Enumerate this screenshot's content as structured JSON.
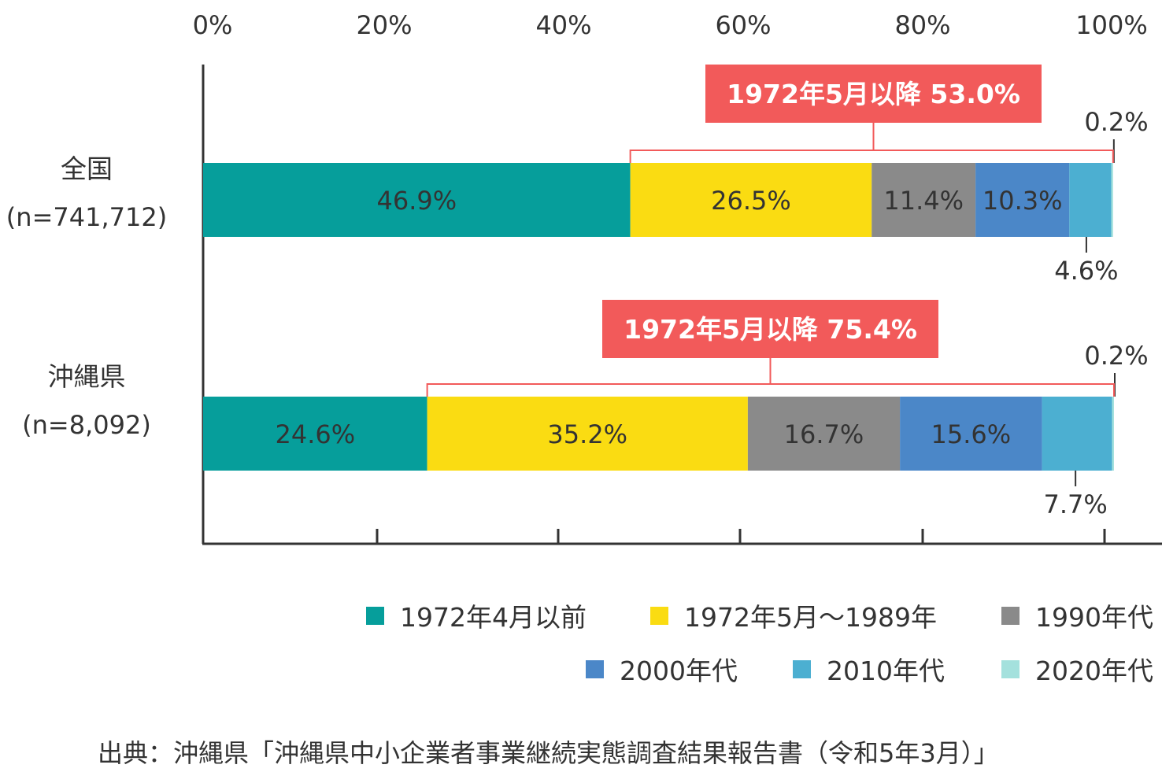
{
  "chart_data": {
    "type": "bar",
    "orientation": "horizontal",
    "stacked": true,
    "categories": [
      "全国",
      "沖縄県"
    ],
    "category_n_labels": [
      "(n=741,712)",
      "(n=8,092)"
    ],
    "xlim": [
      0,
      100
    ],
    "x_ticks": [
      "0%",
      "20%",
      "40%",
      "60%",
      "80%",
      "100%"
    ],
    "series": [
      {
        "name": "1972年4月以前",
        "values": [
          46.9,
          24.6
        ],
        "labels": [
          "46.9%",
          "24.6%"
        ],
        "color": "#069e9b"
      },
      {
        "name": "1972年5月〜1989年",
        "values": [
          26.5,
          35.2
        ],
        "labels": [
          "26.5%",
          "35.2%"
        ],
        "color": "#fadc12"
      },
      {
        "name": "1990年代",
        "values": [
          11.4,
          16.7
        ],
        "labels": [
          "11.4%",
          "16.7%"
        ],
        "color": "#8a8a8a"
      },
      {
        "name": "2000年代",
        "values": [
          10.3,
          15.6
        ],
        "labels": [
          "10.3%",
          "15.6%"
        ],
        "color": "#4b87c8"
      },
      {
        "name": "2010年代",
        "values": [
          4.6,
          7.7
        ],
        "labels": [
          "4.6%",
          "7.7%"
        ],
        "color": "#4cafd1"
      },
      {
        "name": "2020年代",
        "values": [
          0.2,
          0.2
        ],
        "labels": [
          "0.2%",
          "0.2%"
        ],
        "color": "#a4e1dd"
      }
    ],
    "annotations": [
      {
        "category": "全国",
        "text": "1972年5月以降 53.0%",
        "from_series": 1,
        "to_series": 5
      },
      {
        "category": "沖縄県",
        "text": "1972年5月以降 75.4%",
        "from_series": 1,
        "to_series": 5
      }
    ],
    "annotation_color": "#f25a5a",
    "legend_position": "bottom-right"
  },
  "source": "出典：沖縄県「沖縄県中小企業者事業継続実態調査結果報告書（令和5年3月）」"
}
